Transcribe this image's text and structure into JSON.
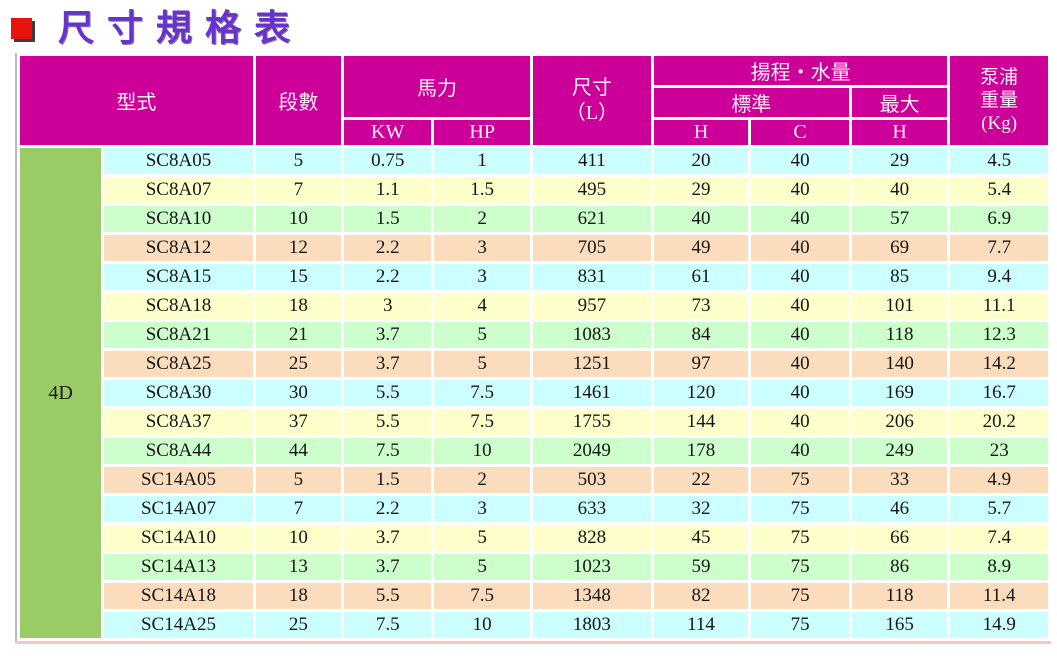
{
  "page_title": "尺寸規格表",
  "colors": {
    "header_bg": "#CC0099",
    "header_text": "#FFEEF9",
    "group_bg": "#99CC66",
    "row_cyan": "#CCFFFF",
    "row_yellow": "#FFFFCC",
    "row_green": "#CCFFCC",
    "row_peach": "#FBDCBD",
    "title_color": "#6633CC",
    "bullet_color": "#E8130C"
  },
  "table": {
    "group_label": "4D",
    "headers": {
      "model": "型式",
      "stages": "段數",
      "power": "馬力",
      "kw": "KW",
      "hp": "HP",
      "dimension": "尺寸\n（L）",
      "head_flow": "揚程・水量",
      "standard": "標準",
      "max": "最大",
      "h1": "H",
      "c": "C",
      "h2": "H",
      "weight": "泵浦\n重量\n(Kg)"
    },
    "rows": [
      {
        "model": "SC8A05",
        "stages": "5",
        "kw": "0.75",
        "hp": "1",
        "dim": "411",
        "std_h": "20",
        "std_c": "40",
        "max_h": "29",
        "weight": "4.5"
      },
      {
        "model": "SC8A07",
        "stages": "7",
        "kw": "1.1",
        "hp": "1.5",
        "dim": "495",
        "std_h": "29",
        "std_c": "40",
        "max_h": "40",
        "weight": "5.4"
      },
      {
        "model": "SC8A10",
        "stages": "10",
        "kw": "1.5",
        "hp": "2",
        "dim": "621",
        "std_h": "40",
        "std_c": "40",
        "max_h": "57",
        "weight": "6.9"
      },
      {
        "model": "SC8A12",
        "stages": "12",
        "kw": "2.2",
        "hp": "3",
        "dim": "705",
        "std_h": "49",
        "std_c": "40",
        "max_h": "69",
        "weight": "7.7"
      },
      {
        "model": "SC8A15",
        "stages": "15",
        "kw": "2.2",
        "hp": "3",
        "dim": "831",
        "std_h": "61",
        "std_c": "40",
        "max_h": "85",
        "weight": "9.4"
      },
      {
        "model": "SC8A18",
        "stages": "18",
        "kw": "3",
        "hp": "4",
        "dim": "957",
        "std_h": "73",
        "std_c": "40",
        "max_h": "101",
        "weight": "11.1"
      },
      {
        "model": "SC8A21",
        "stages": "21",
        "kw": "3.7",
        "hp": "5",
        "dim": "1083",
        "std_h": "84",
        "std_c": "40",
        "max_h": "118",
        "weight": "12.3"
      },
      {
        "model": "SC8A25",
        "stages": "25",
        "kw": "3.7",
        "hp": "5",
        "dim": "1251",
        "std_h": "97",
        "std_c": "40",
        "max_h": "140",
        "weight": "14.2"
      },
      {
        "model": "SC8A30",
        "stages": "30",
        "kw": "5.5",
        "hp": "7.5",
        "dim": "1461",
        "std_h": "120",
        "std_c": "40",
        "max_h": "169",
        "weight": "16.7"
      },
      {
        "model": "SC8A37",
        "stages": "37",
        "kw": "5.5",
        "hp": "7.5",
        "dim": "1755",
        "std_h": "144",
        "std_c": "40",
        "max_h": "206",
        "weight": "20.2"
      },
      {
        "model": "SC8A44",
        "stages": "44",
        "kw": "7.5",
        "hp": "10",
        "dim": "2049",
        "std_h": "178",
        "std_c": "40",
        "max_h": "249",
        "weight": "23"
      },
      {
        "model": "SC14A05",
        "stages": "5",
        "kw": "1.5",
        "hp": "2",
        "dim": "503",
        "std_h": "22",
        "std_c": "75",
        "max_h": "33",
        "weight": "4.9"
      },
      {
        "model": "SC14A07",
        "stages": "7",
        "kw": "2.2",
        "hp": "3",
        "dim": "633",
        "std_h": "32",
        "std_c": "75",
        "max_h": "46",
        "weight": "5.7"
      },
      {
        "model": "SC14A10",
        "stages": "10",
        "kw": "3.7",
        "hp": "5",
        "dim": "828",
        "std_h": "45",
        "std_c": "75",
        "max_h": "66",
        "weight": "7.4"
      },
      {
        "model": "SC14A13",
        "stages": "13",
        "kw": "3.7",
        "hp": "5",
        "dim": "1023",
        "std_h": "59",
        "std_c": "75",
        "max_h": "86",
        "weight": "8.9"
      },
      {
        "model": "SC14A18",
        "stages": "18",
        "kw": "5.5",
        "hp": "7.5",
        "dim": "1348",
        "std_h": "82",
        "std_c": "75",
        "max_h": "118",
        "weight": "11.4"
      },
      {
        "model": "SC14A25",
        "stages": "25",
        "kw": "7.5",
        "hp": "10",
        "dim": "1803",
        "std_h": "114",
        "std_c": "75",
        "max_h": "165",
        "weight": "14.9"
      }
    ]
  }
}
